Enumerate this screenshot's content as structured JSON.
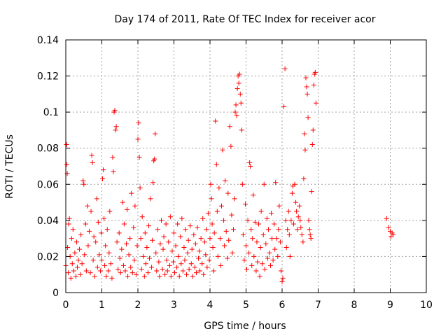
{
  "chart_data": {
    "type": "scatter",
    "title": "Day 174 of 2011, Rate Of TEC Index for receiver acor",
    "xlabel": "GPS time / hours",
    "ylabel": "ROTI / TECUs",
    "xlim": [
      0,
      10
    ],
    "ylim": [
      0,
      0.14
    ],
    "xticks": [
      0,
      1,
      2,
      3,
      4,
      5,
      6,
      7,
      8,
      9,
      10
    ],
    "yticks": [
      0,
      0.02,
      0.04,
      0.06,
      0.08,
      0.1,
      0.12,
      0.14
    ],
    "xtick_labels": [
      "0",
      "1",
      "2",
      "3",
      "4",
      "5",
      "6",
      "7",
      "8",
      "9",
      "10"
    ],
    "ytick_labels": [
      "0",
      "0.02",
      "0.04",
      "0.06",
      "0.08",
      "0.1",
      "0.12",
      "0.14"
    ],
    "grid": true,
    "marker": "+",
    "color": "#ff0000",
    "series": [
      {
        "name": "ROTI",
        "points": [
          [
            0.0,
            0.015
          ],
          [
            0.02,
            0.082
          ],
          [
            0.03,
            0.071
          ],
          [
            0.04,
            0.066
          ],
          [
            0.05,
            0.025
          ],
          [
            0.07,
            0.011
          ],
          [
            0.08,
            0.038
          ],
          [
            0.1,
            0.041
          ],
          [
            0.12,
            0.02
          ],
          [
            0.14,
            0.008
          ],
          [
            0.16,
            0.03
          ],
          [
            0.18,
            0.016
          ],
          [
            0.2,
            0.035
          ],
          [
            0.22,
            0.012
          ],
          [
            0.25,
            0.022
          ],
          [
            0.28,
            0.009
          ],
          [
            0.3,
            0.028
          ],
          [
            0.32,
            0.014
          ],
          [
            0.35,
            0.018
          ],
          [
            0.38,
            0.024
          ],
          [
            0.4,
            0.01
          ],
          [
            0.42,
            0.032
          ],
          [
            0.45,
            0.016
          ],
          [
            0.48,
            0.062
          ],
          [
            0.5,
            0.06
          ],
          [
            0.52,
            0.021
          ],
          [
            0.55,
            0.038
          ],
          [
            0.57,
            0.012
          ],
          [
            0.6,
            0.048
          ],
          [
            0.62,
            0.026
          ],
          [
            0.65,
            0.034
          ],
          [
            0.68,
            0.011
          ],
          [
            0.7,
            0.045
          ],
          [
            0.72,
            0.076
          ],
          [
            0.74,
            0.072
          ],
          [
            0.76,
            0.018
          ],
          [
            0.78,
            0.031
          ],
          [
            0.8,
            0.009
          ],
          [
            0.83,
            0.028
          ],
          [
            0.86,
            0.052
          ],
          [
            0.88,
            0.014
          ],
          [
            0.9,
            0.039
          ],
          [
            0.93,
            0.021
          ],
          [
            0.96,
            0.012
          ],
          [
            0.98,
            0.033
          ],
          [
            1.0,
            0.018
          ],
          [
            1.02,
            0.063
          ],
          [
            1.04,
            0.068
          ],
          [
            1.06,
            0.041
          ],
          [
            1.08,
            0.015
          ],
          [
            1.1,
            0.026
          ],
          [
            1.12,
            0.009
          ],
          [
            1.15,
            0.035
          ],
          [
            1.18,
            0.012
          ],
          [
            1.2,
            0.022
          ],
          [
            1.22,
            0.045
          ],
          [
            1.25,
            0.016
          ],
          [
            1.28,
            0.008
          ],
          [
            1.3,
            0.075
          ],
          [
            1.32,
            0.067
          ],
          [
            1.34,
            0.1
          ],
          [
            1.36,
            0.101
          ],
          [
            1.38,
            0.09
          ],
          [
            1.4,
            0.092
          ],
          [
            1.42,
            0.028
          ],
          [
            1.45,
            0.013
          ],
          [
            1.48,
            0.033
          ],
          [
            1.5,
            0.019
          ],
          [
            1.52,
            0.011
          ],
          [
            1.55,
            0.024
          ],
          [
            1.58,
            0.05
          ],
          [
            1.6,
            0.015
          ],
          [
            1.62,
            0.038
          ],
          [
            1.65,
            0.012
          ],
          [
            1.68,
            0.027
          ],
          [
            1.7,
            0.046
          ],
          [
            1.72,
            0.009
          ],
          [
            1.75,
            0.021
          ],
          [
            1.78,
            0.03
          ],
          [
            1.8,
            0.014
          ],
          [
            1.82,
            0.055
          ],
          [
            1.85,
            0.011
          ],
          [
            1.88,
            0.036
          ],
          [
            1.9,
            0.018
          ],
          [
            1.92,
            0.048
          ],
          [
            1.95,
            0.01
          ],
          [
            1.98,
            0.026
          ],
          [
            2.0,
            0.085
          ],
          [
            2.02,
            0.094
          ],
          [
            2.04,
            0.075
          ],
          [
            2.06,
            0.058
          ],
          [
            2.08,
            0.03
          ],
          [
            2.1,
            0.013
          ],
          [
            2.12,
            0.042
          ],
          [
            2.15,
            0.02
          ],
          [
            2.18,
            0.009
          ],
          [
            2.2,
            0.033
          ],
          [
            2.22,
            0.016
          ],
          [
            2.25,
            0.025
          ],
          [
            2.28,
            0.011
          ],
          [
            2.3,
            0.037
          ],
          [
            2.32,
            0.019
          ],
          [
            2.35,
            0.052
          ],
          [
            2.38,
            0.014
          ],
          [
            2.4,
            0.029
          ],
          [
            2.42,
            0.061
          ],
          [
            2.44,
            0.073
          ],
          [
            2.46,
            0.074
          ],
          [
            2.48,
            0.088
          ],
          [
            2.5,
            0.022
          ],
          [
            2.52,
            0.012
          ],
          [
            2.55,
            0.035
          ],
          [
            2.58,
            0.017
          ],
          [
            2.6,
            0.009
          ],
          [
            2.62,
            0.027
          ],
          [
            2.65,
            0.04
          ],
          [
            2.68,
            0.013
          ],
          [
            2.7,
            0.024
          ],
          [
            2.72,
            0.031
          ],
          [
            2.75,
            0.01
          ],
          [
            2.78,
            0.038
          ],
          [
            2.8,
            0.018
          ],
          [
            2.82,
            0.012
          ],
          [
            2.85,
            0.028
          ],
          [
            2.88,
            0.015
          ],
          [
            2.9,
            0.042
          ],
          [
            2.92,
            0.009
          ],
          [
            2.95,
            0.023
          ],
          [
            2.98,
            0.017
          ],
          [
            3.0,
            0.033
          ],
          [
            3.02,
            0.011
          ],
          [
            3.05,
            0.026
          ],
          [
            3.08,
            0.014
          ],
          [
            3.1,
            0.038
          ],
          [
            3.12,
            0.02
          ],
          [
            3.15,
            0.009
          ],
          [
            3.18,
            0.031
          ],
          [
            3.2,
            0.016
          ],
          [
            3.22,
            0.041
          ],
          [
            3.25,
            0.012
          ],
          [
            3.28,
            0.025
          ],
          [
            3.3,
            0.018
          ],
          [
            3.32,
            0.035
          ],
          [
            3.35,
            0.01
          ],
          [
            3.38,
            0.022
          ],
          [
            3.4,
            0.029
          ],
          [
            3.42,
            0.013
          ],
          [
            3.45,
            0.037
          ],
          [
            3.48,
            0.016
          ],
          [
            3.5,
            0.024
          ],
          [
            3.52,
            0.009
          ],
          [
            3.55,
            0.032
          ],
          [
            3.58,
            0.014
          ],
          [
            3.6,
            0.027
          ],
          [
            3.62,
            0.011
          ],
          [
            3.65,
            0.036
          ],
          [
            3.68,
            0.019
          ],
          [
            3.7,
            0.023
          ],
          [
            3.72,
            0.012
          ],
          [
            3.75,
            0.03
          ],
          [
            3.78,
            0.016
          ],
          [
            3.8,
            0.041
          ],
          [
            3.82,
            0.01
          ],
          [
            3.85,
            0.028
          ],
          [
            3.88,
            0.021
          ],
          [
            3.9,
            0.035
          ],
          [
            3.92,
            0.014
          ],
          [
            3.95,
            0.044
          ],
          [
            3.98,
            0.018
          ],
          [
            4.0,
            0.03
          ],
          [
            4.02,
            0.06
          ],
          [
            4.04,
            0.052
          ],
          [
            4.06,
            0.038
          ],
          [
            4.08,
            0.025
          ],
          [
            4.1,
            0.012
          ],
          [
            4.12,
            0.033
          ],
          [
            4.15,
            0.095
          ],
          [
            4.18,
            0.071
          ],
          [
            4.2,
            0.045
          ],
          [
            4.22,
            0.02
          ],
          [
            4.25,
            0.058
          ],
          [
            4.28,
            0.03
          ],
          [
            4.3,
            0.015
          ],
          [
            4.32,
            0.048
          ],
          [
            4.35,
            0.079
          ],
          [
            4.38,
            0.04
          ],
          [
            4.4,
            0.026
          ],
          [
            4.42,
            0.062
          ],
          [
            4.45,
            0.034
          ],
          [
            4.48,
            0.019
          ],
          [
            4.5,
            0.055
          ],
          [
            4.52,
            0.029
          ],
          [
            4.55,
            0.092
          ],
          [
            4.58,
            0.081
          ],
          [
            4.6,
            0.043
          ],
          [
            4.62,
            0.022
          ],
          [
            4.65,
            0.035
          ],
          [
            4.68,
            0.052
          ],
          [
            4.7,
            0.1
          ],
          [
            4.72,
            0.104
          ],
          [
            4.74,
            0.098
          ],
          [
            4.76,
            0.113
          ],
          [
            4.78,
            0.12
          ],
          [
            4.8,
            0.116
          ],
          [
            4.82,
            0.121
          ],
          [
            4.84,
            0.11
          ],
          [
            4.86,
            0.105
          ],
          [
            4.88,
            0.09
          ],
          [
            4.9,
            0.06
          ],
          [
            4.92,
            0.032
          ],
          [
            4.95,
            0.018
          ],
          [
            4.98,
            0.049
          ],
          [
            5.0,
            0.026
          ],
          [
            5.02,
            0.013
          ],
          [
            5.05,
            0.04
          ],
          [
            5.08,
            0.022
          ],
          [
            5.1,
            0.072
          ],
          [
            5.12,
            0.07
          ],
          [
            5.14,
            0.035
          ],
          [
            5.16,
            0.015
          ],
          [
            5.18,
            0.03
          ],
          [
            5.2,
            0.054
          ],
          [
            5.22,
            0.02
          ],
          [
            5.25,
            0.039
          ],
          [
            5.28,
            0.012
          ],
          [
            5.3,
            0.028
          ],
          [
            5.32,
            0.017
          ],
          [
            5.35,
            0.038
          ],
          [
            5.38,
            0.009
          ],
          [
            5.4,
            0.025
          ],
          [
            5.42,
            0.045
          ],
          [
            5.45,
            0.016
          ],
          [
            5.48,
            0.032
          ],
          [
            5.5,
            0.06
          ],
          [
            5.52,
            0.013
          ],
          [
            5.55,
            0.027
          ],
          [
            5.58,
            0.041
          ],
          [
            5.6,
            0.019
          ],
          [
            5.62,
            0.035
          ],
          [
            5.65,
            0.022
          ],
          [
            5.68,
            0.015
          ],
          [
            5.7,
            0.044
          ],
          [
            5.72,
            0.03
          ],
          [
            5.75,
            0.018
          ],
          [
            5.78,
            0.038
          ],
          [
            5.8,
            0.024
          ],
          [
            5.82,
            0.061
          ],
          [
            5.85,
            0.03
          ],
          [
            5.88,
            0.02
          ],
          [
            5.9,
            0.035
          ],
          [
            5.92,
            0.048
          ],
          [
            5.95,
            0.028
          ],
          [
            5.97,
            0.012
          ],
          [
            6.0,
            0.006
          ],
          [
            6.02,
            0.008
          ],
          [
            6.05,
            0.103
          ],
          [
            6.08,
            0.124
          ],
          [
            6.1,
            0.04
          ],
          [
            6.12,
            0.025
          ],
          [
            6.15,
            0.035
          ],
          [
            6.18,
            0.045
          ],
          [
            6.2,
            0.032
          ],
          [
            6.22,
            0.02
          ],
          [
            6.25,
            0.04
          ],
          [
            6.28,
            0.055
          ],
          [
            6.3,
            0.059
          ],
          [
            6.32,
            0.038
          ],
          [
            6.35,
            0.06
          ],
          [
            6.38,
            0.05
          ],
          [
            6.4,
            0.045
          ],
          [
            6.42,
            0.035
          ],
          [
            6.45,
            0.042
          ],
          [
            6.48,
            0.048
          ],
          [
            6.5,
            0.04
          ],
          [
            6.52,
            0.036
          ],
          [
            6.55,
            0.032
          ],
          [
            6.58,
            0.028
          ],
          [
            6.6,
            0.063
          ],
          [
            6.62,
            0.088
          ],
          [
            6.64,
            0.079
          ],
          [
            6.66,
            0.119
          ],
          [
            6.68,
            0.114
          ],
          [
            6.7,
            0.11
          ],
          [
            6.72,
            0.097
          ],
          [
            6.74,
            0.04
          ],
          [
            6.76,
            0.035
          ],
          [
            6.78,
            0.032
          ],
          [
            6.8,
            0.03
          ],
          [
            6.82,
            0.056
          ],
          [
            6.84,
            0.082
          ],
          [
            6.86,
            0.09
          ],
          [
            6.88,
            0.115
          ],
          [
            6.9,
            0.121
          ],
          [
            6.92,
            0.122
          ],
          [
            6.94,
            0.105
          ],
          [
            8.9,
            0.041
          ],
          [
            8.95,
            0.036
          ],
          [
            9.0,
            0.034
          ],
          [
            9.02,
            0.031
          ],
          [
            9.05,
            0.033
          ],
          [
            9.08,
            0.032
          ]
        ]
      }
    ]
  }
}
